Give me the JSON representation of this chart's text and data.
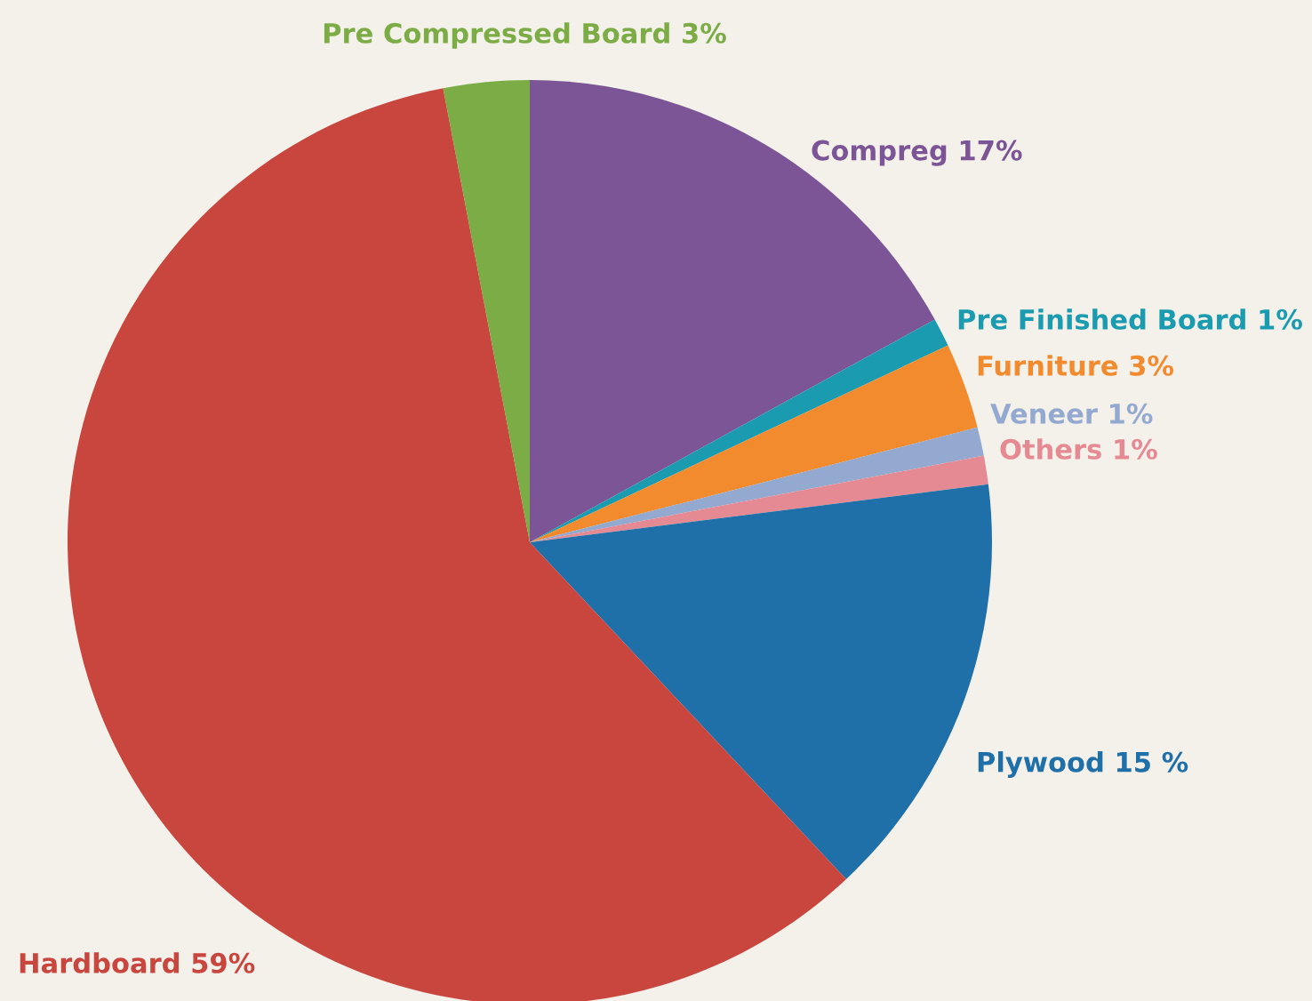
{
  "chart_data": {
    "type": "pie",
    "categories": [
      "Compreg 17%",
      "Pre Finished Board 1%",
      "Furniture 3%",
      "Veneer 1%",
      "Others 1%",
      "Plywood 15 %",
      "Hardboard 59%",
      "Pre Compressed Board 3%"
    ],
    "values": [
      17,
      1,
      3,
      1,
      1,
      15,
      59,
      3
    ],
    "colors": [
      "#7b5595",
      "#1a9bb0",
      "#f28a2e",
      "#93a9d0",
      "#e58a93",
      "#1f6fa8",
      "#c9463f",
      "#7cac45"
    ],
    "legend": false
  }
}
